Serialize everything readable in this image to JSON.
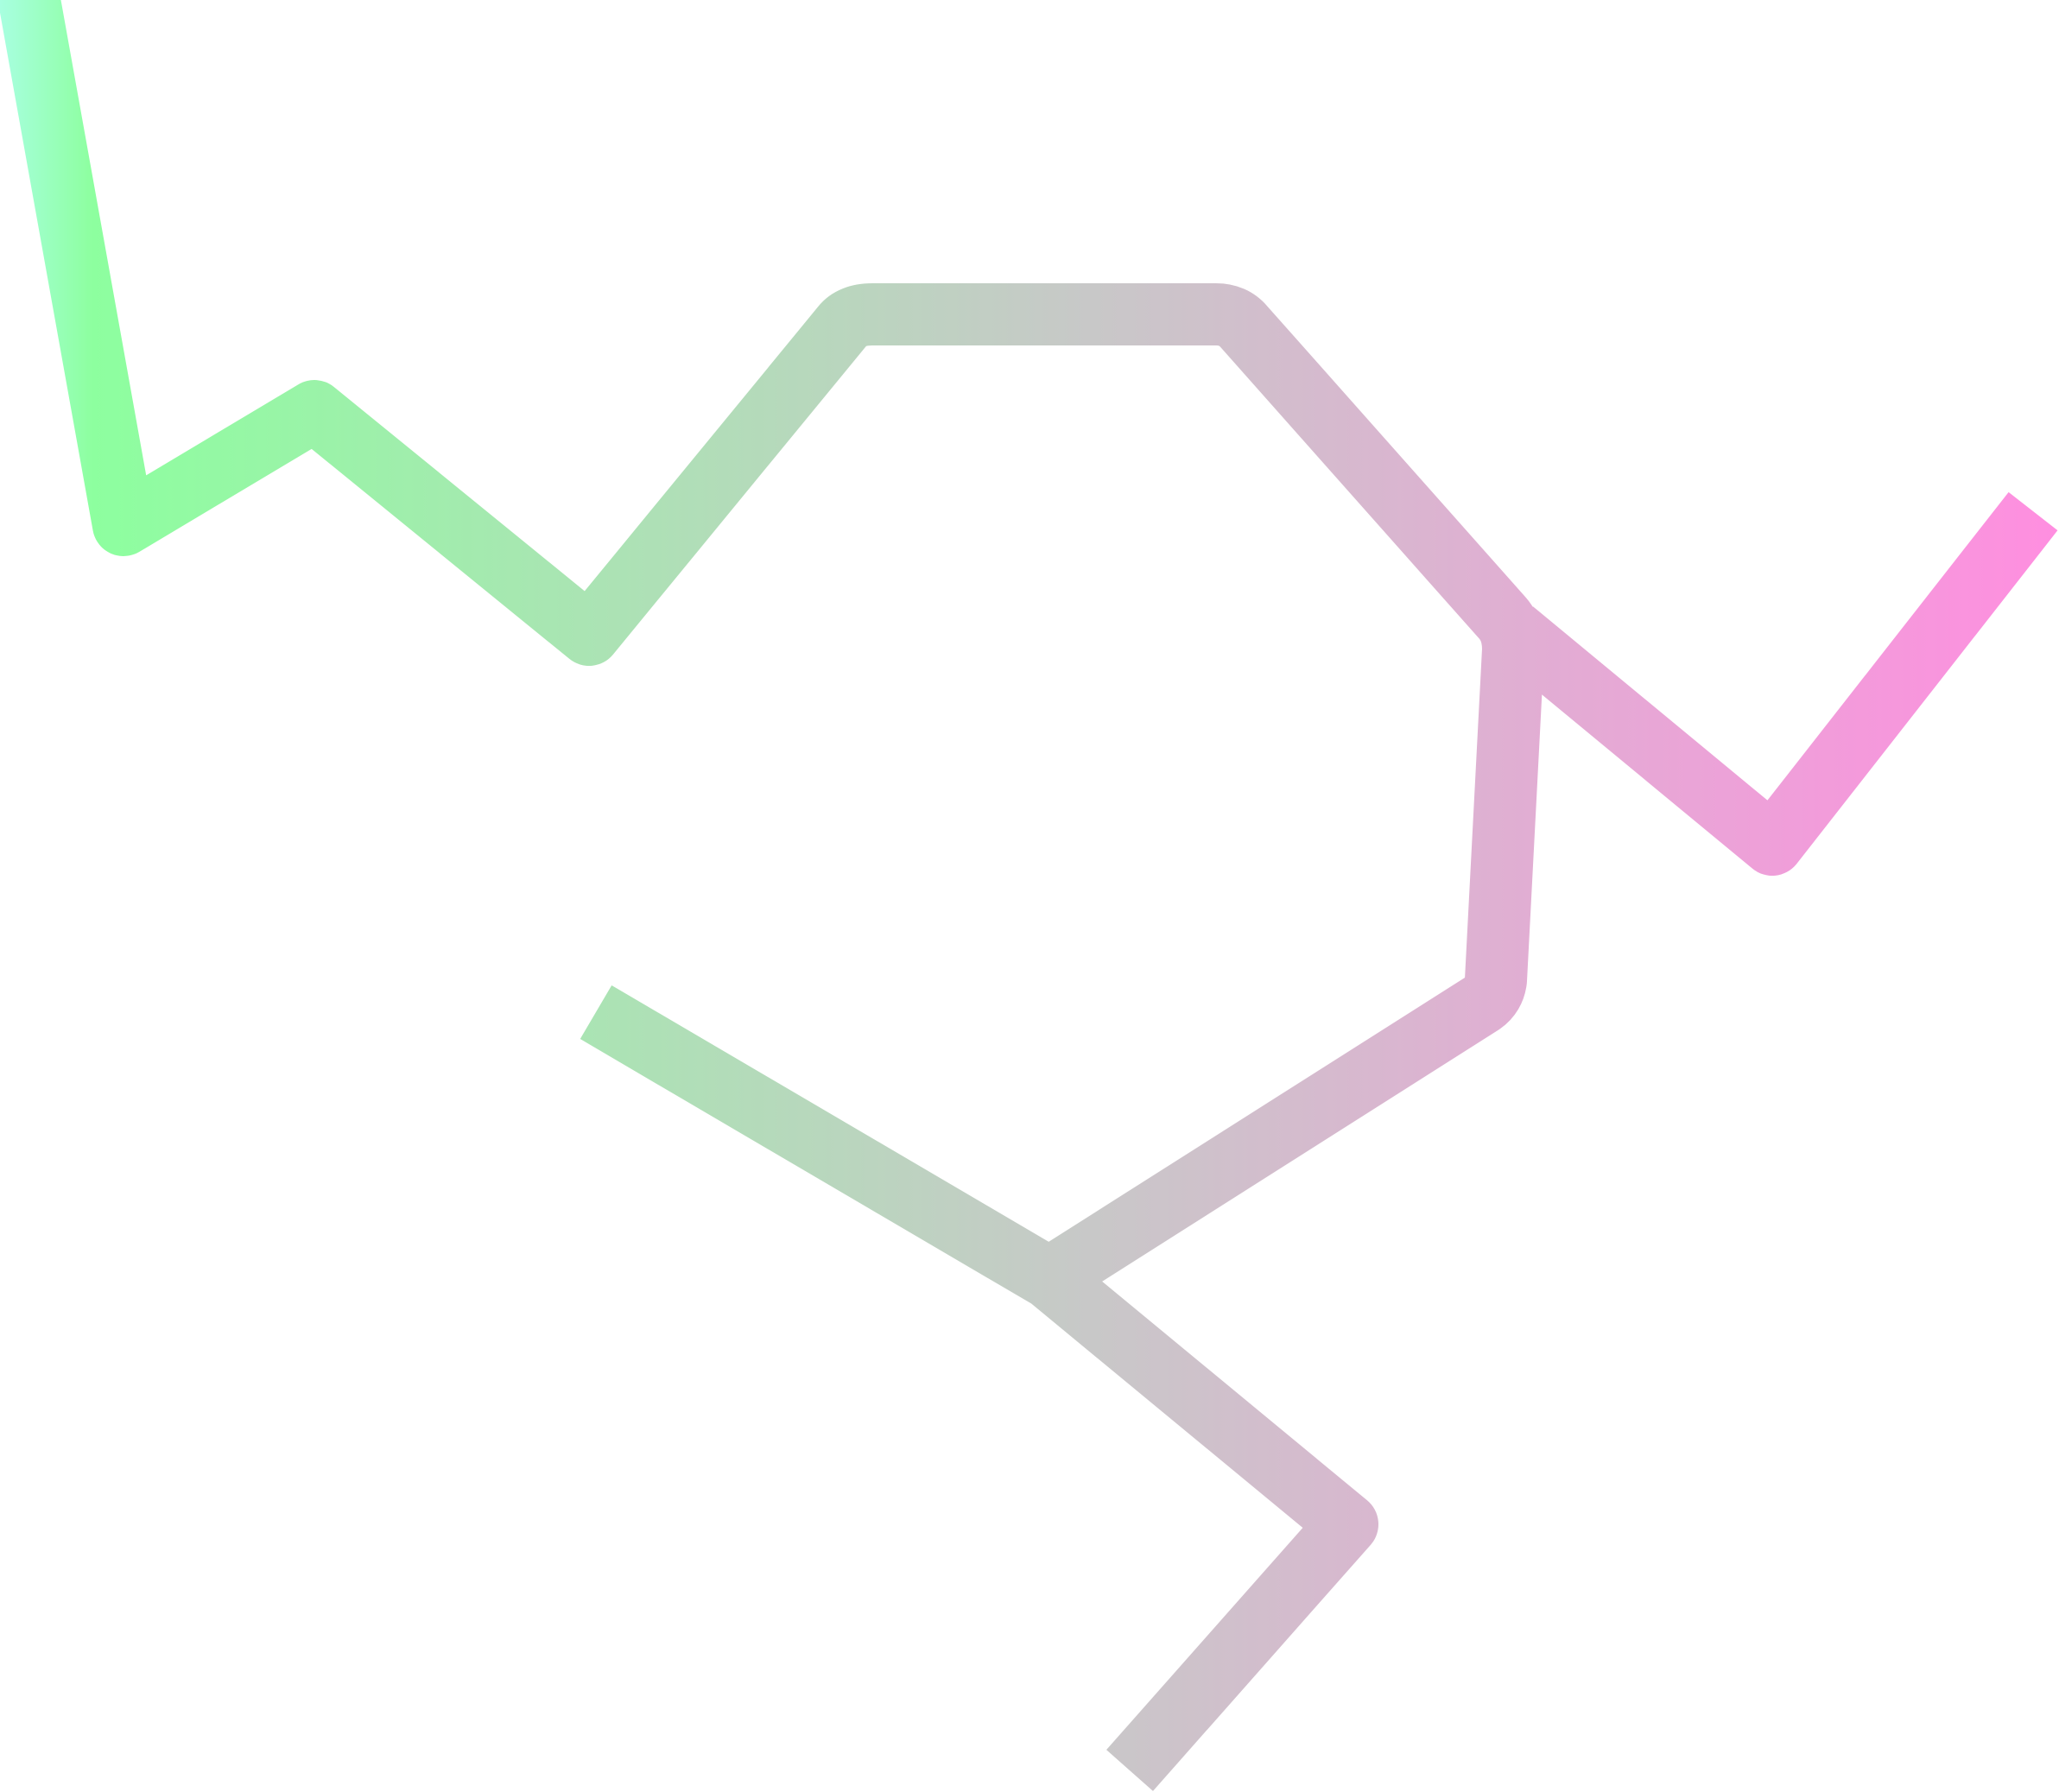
{
  "artwork": {
    "gradient": {
      "start_color": "#a8ffe0",
      "green_color": "#8dff9f",
      "mid_color": "#c8c8c8",
      "end_color": "#ff8ee0"
    },
    "background_color": "#ffffff"
  }
}
